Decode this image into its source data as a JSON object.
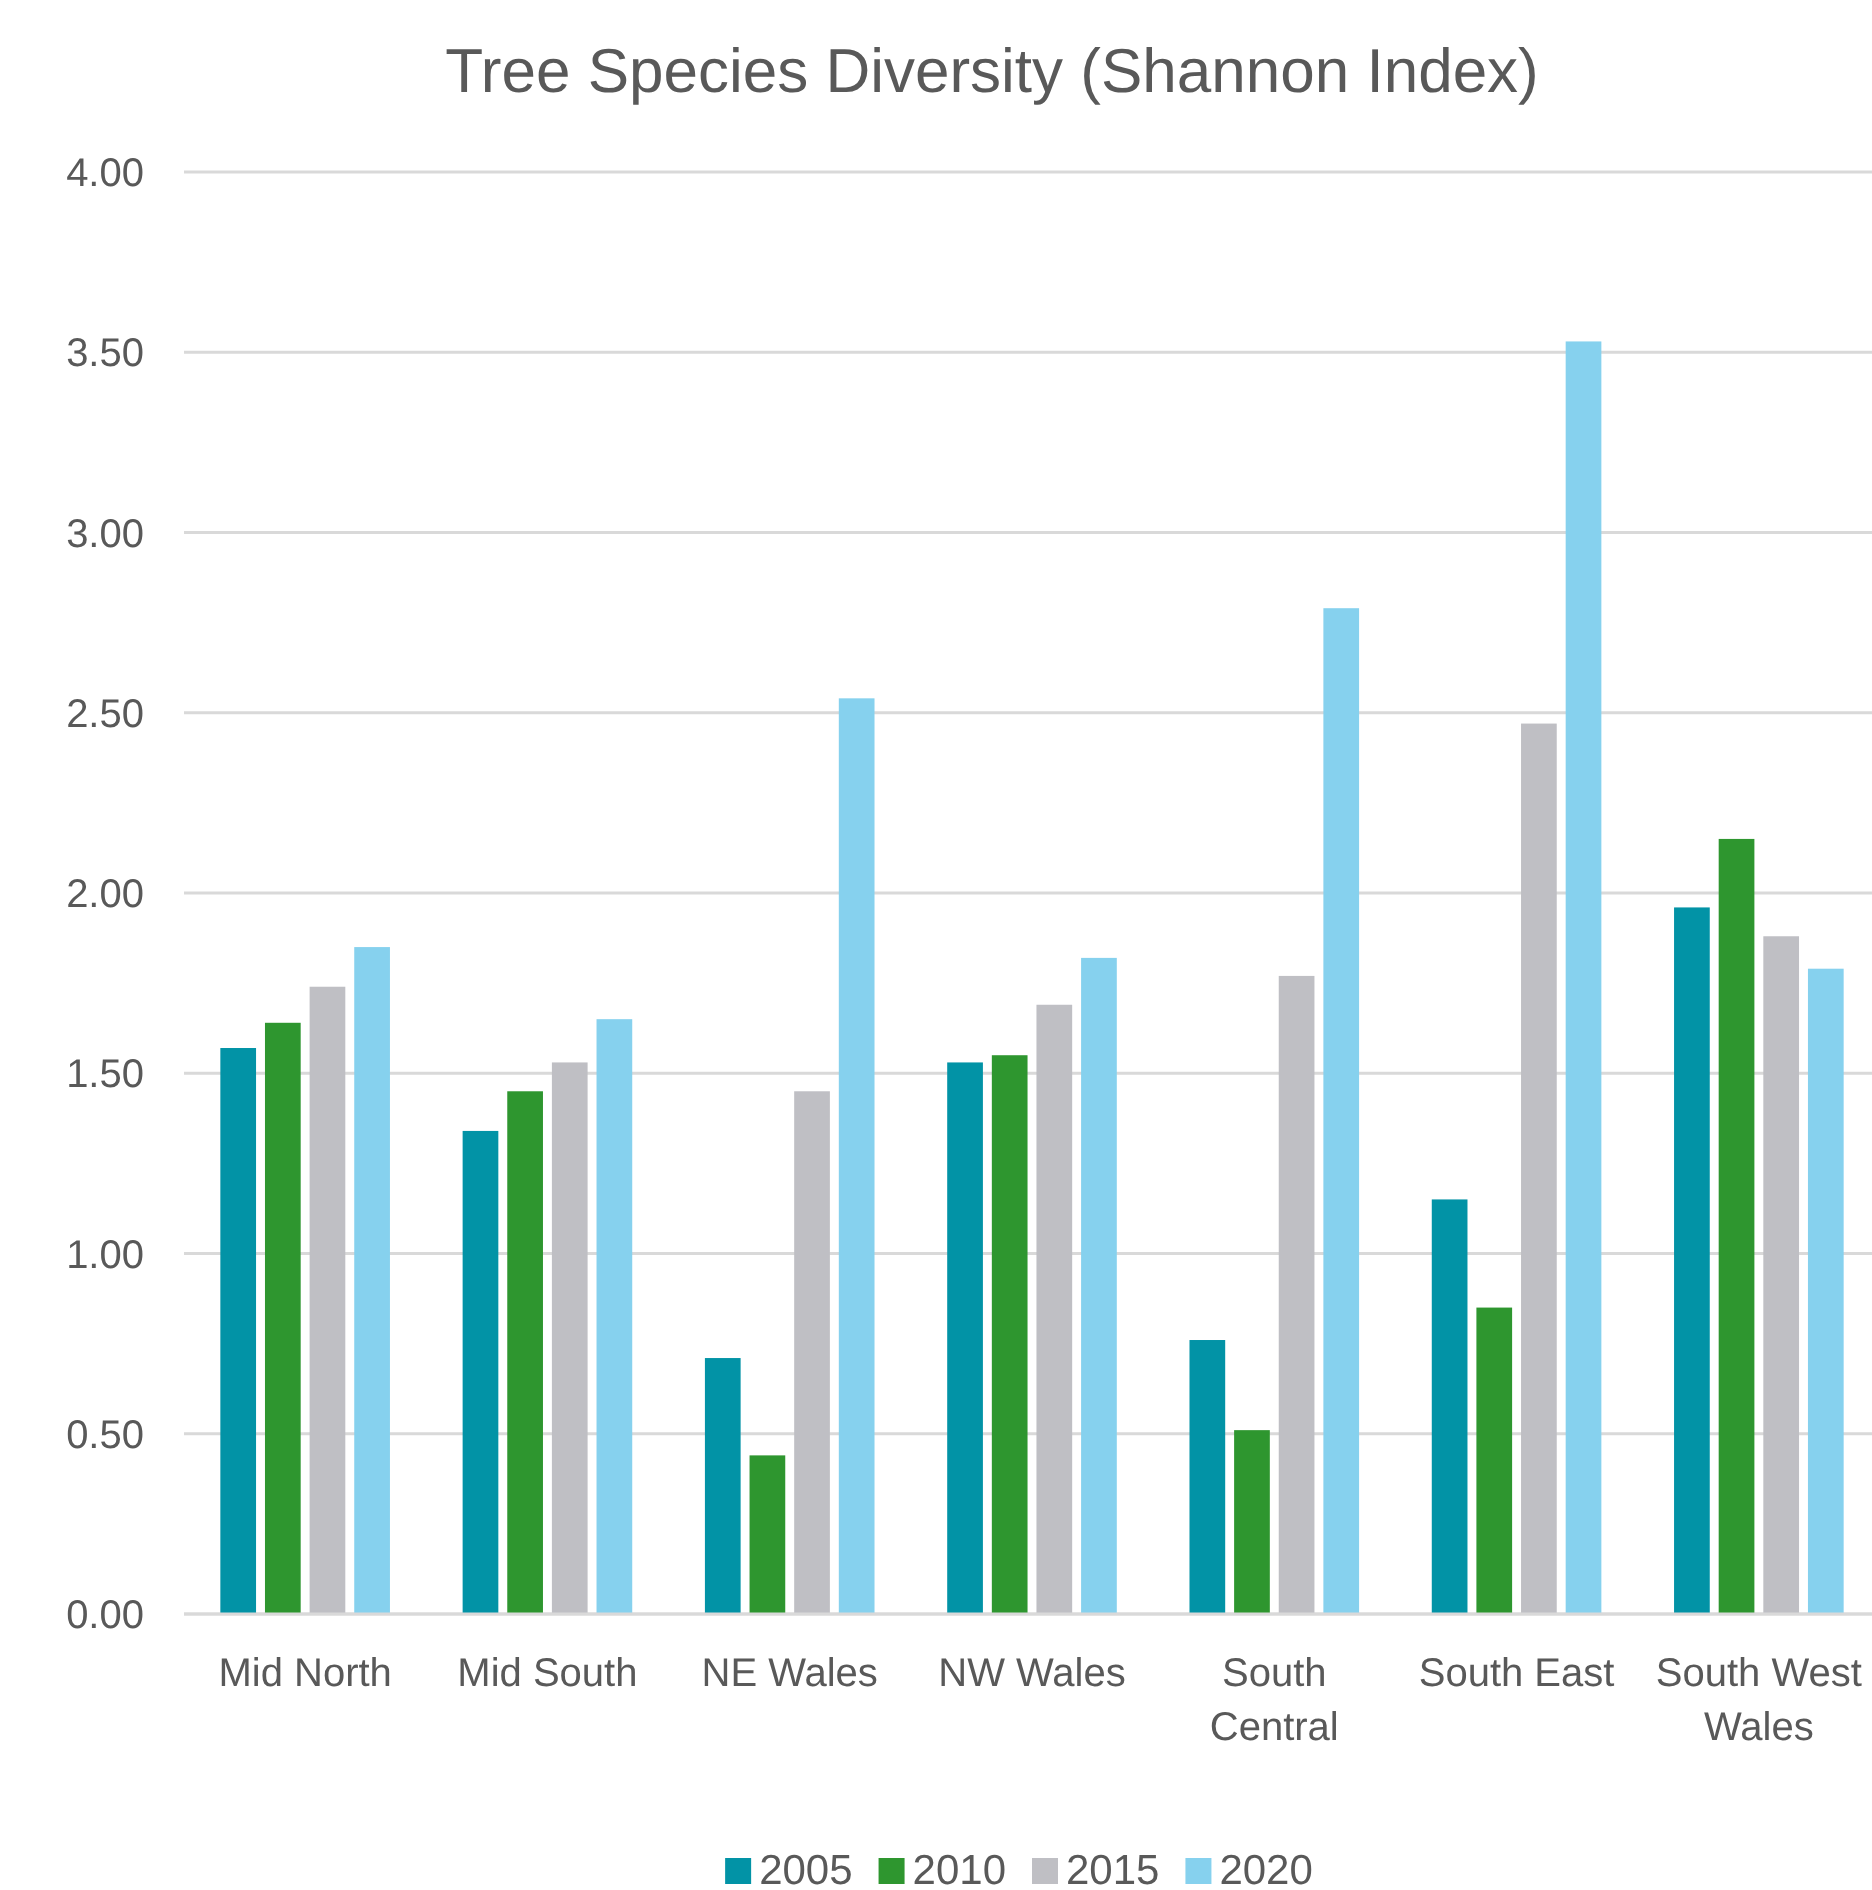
{
  "chart_data": {
    "type": "bar",
    "title": "Tree Species Diversity (Shannon Index)",
    "categories": [
      "Mid North",
      "Mid South",
      "NE Wales",
      "NW Wales",
      "South Central",
      "South East",
      "South West Wales"
    ],
    "series": [
      {
        "name": "2005",
        "color": "#0293a6",
        "values": [
          1.57,
          1.34,
          0.71,
          1.53,
          0.76,
          1.15,
          1.96
        ]
      },
      {
        "name": "2010",
        "color": "#2e962f",
        "values": [
          1.64,
          1.45,
          0.44,
          1.55,
          0.51,
          0.85,
          2.15
        ]
      },
      {
        "name": "2015",
        "color": "#bfbfc4",
        "values": [
          1.74,
          1.53,
          1.45,
          1.69,
          1.77,
          2.47,
          1.88
        ]
      },
      {
        "name": "2020",
        "color": "#86d1ee",
        "values": [
          1.85,
          1.65,
          2.54,
          1.82,
          2.79,
          3.53,
          1.79
        ]
      }
    ],
    "ylim": [
      0,
      4
    ],
    "yticks": [
      {
        "value": 0,
        "label": "0.00"
      },
      {
        "value": 0.5,
        "label": "0.50"
      },
      {
        "value": 1,
        "label": "1.00"
      },
      {
        "value": 1.5,
        "label": "1.50"
      },
      {
        "value": 2,
        "label": "2.00"
      },
      {
        "value": 2.5,
        "label": "2.50"
      },
      {
        "value": 3,
        "label": "3.00"
      },
      {
        "value": 3.5,
        "label": "3.50"
      },
      {
        "value": 4,
        "label": "4.00"
      }
    ],
    "grid": "y",
    "legend": "bottom"
  }
}
